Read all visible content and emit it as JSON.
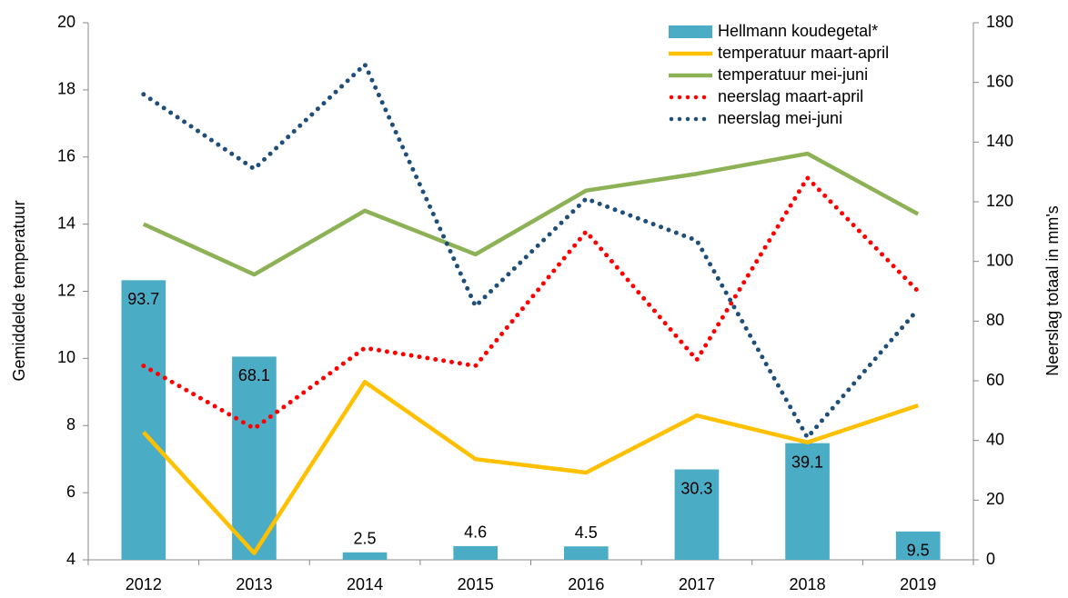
{
  "chart_data": {
    "type": "bar-line",
    "categories": [
      "2012",
      "2013",
      "2014",
      "2015",
      "2016",
      "2017",
      "2018",
      "2019"
    ],
    "ylabel": "Gemiddelde  temperatuur",
    "y2label": "Neerslag  totaal in mm's",
    "ylim": [
      4,
      20
    ],
    "yticks": [
      4,
      6,
      8,
      10,
      12,
      14,
      16,
      18,
      20
    ],
    "y2lim": [
      0,
      180
    ],
    "y2ticks": [
      0,
      20,
      40,
      60,
      80,
      100,
      120,
      140,
      160,
      180
    ],
    "legend": "top-right",
    "series": [
      {
        "name": "Hellmann koudegetal*",
        "type": "bar",
        "axis": "y2",
        "color": "#4bacc6",
        "values": [
          93.7,
          68.1,
          2.5,
          4.6,
          4.5,
          30.3,
          39.1,
          9.5
        ]
      },
      {
        "name": "temperatuur maart-april",
        "type": "line",
        "style": "solid",
        "color": "#ffc000",
        "values": [
          7.8,
          4.2,
          9.3,
          7.0,
          6.6,
          8.3,
          7.5,
          8.6
        ]
      },
      {
        "name": "temperatuur mei-juni",
        "type": "line",
        "style": "solid",
        "color": "#8db255",
        "values": [
          14.0,
          12.5,
          14.4,
          13.1,
          15.0,
          15.5,
          16.1,
          14.3
        ]
      },
      {
        "name": "neerslag maart-april",
        "type": "line",
        "style": "dotted",
        "axis": "y2",
        "color": "#ff0000",
        "values": [
          65,
          44,
          71,
          65,
          110,
          67,
          128,
          90
        ]
      },
      {
        "name": "neerslag mei-juni",
        "type": "line",
        "style": "dotted",
        "axis": "y2",
        "color": "#1f4e79",
        "values": [
          156,
          131,
          166,
          85,
          121,
          107,
          41,
          84
        ]
      }
    ]
  }
}
